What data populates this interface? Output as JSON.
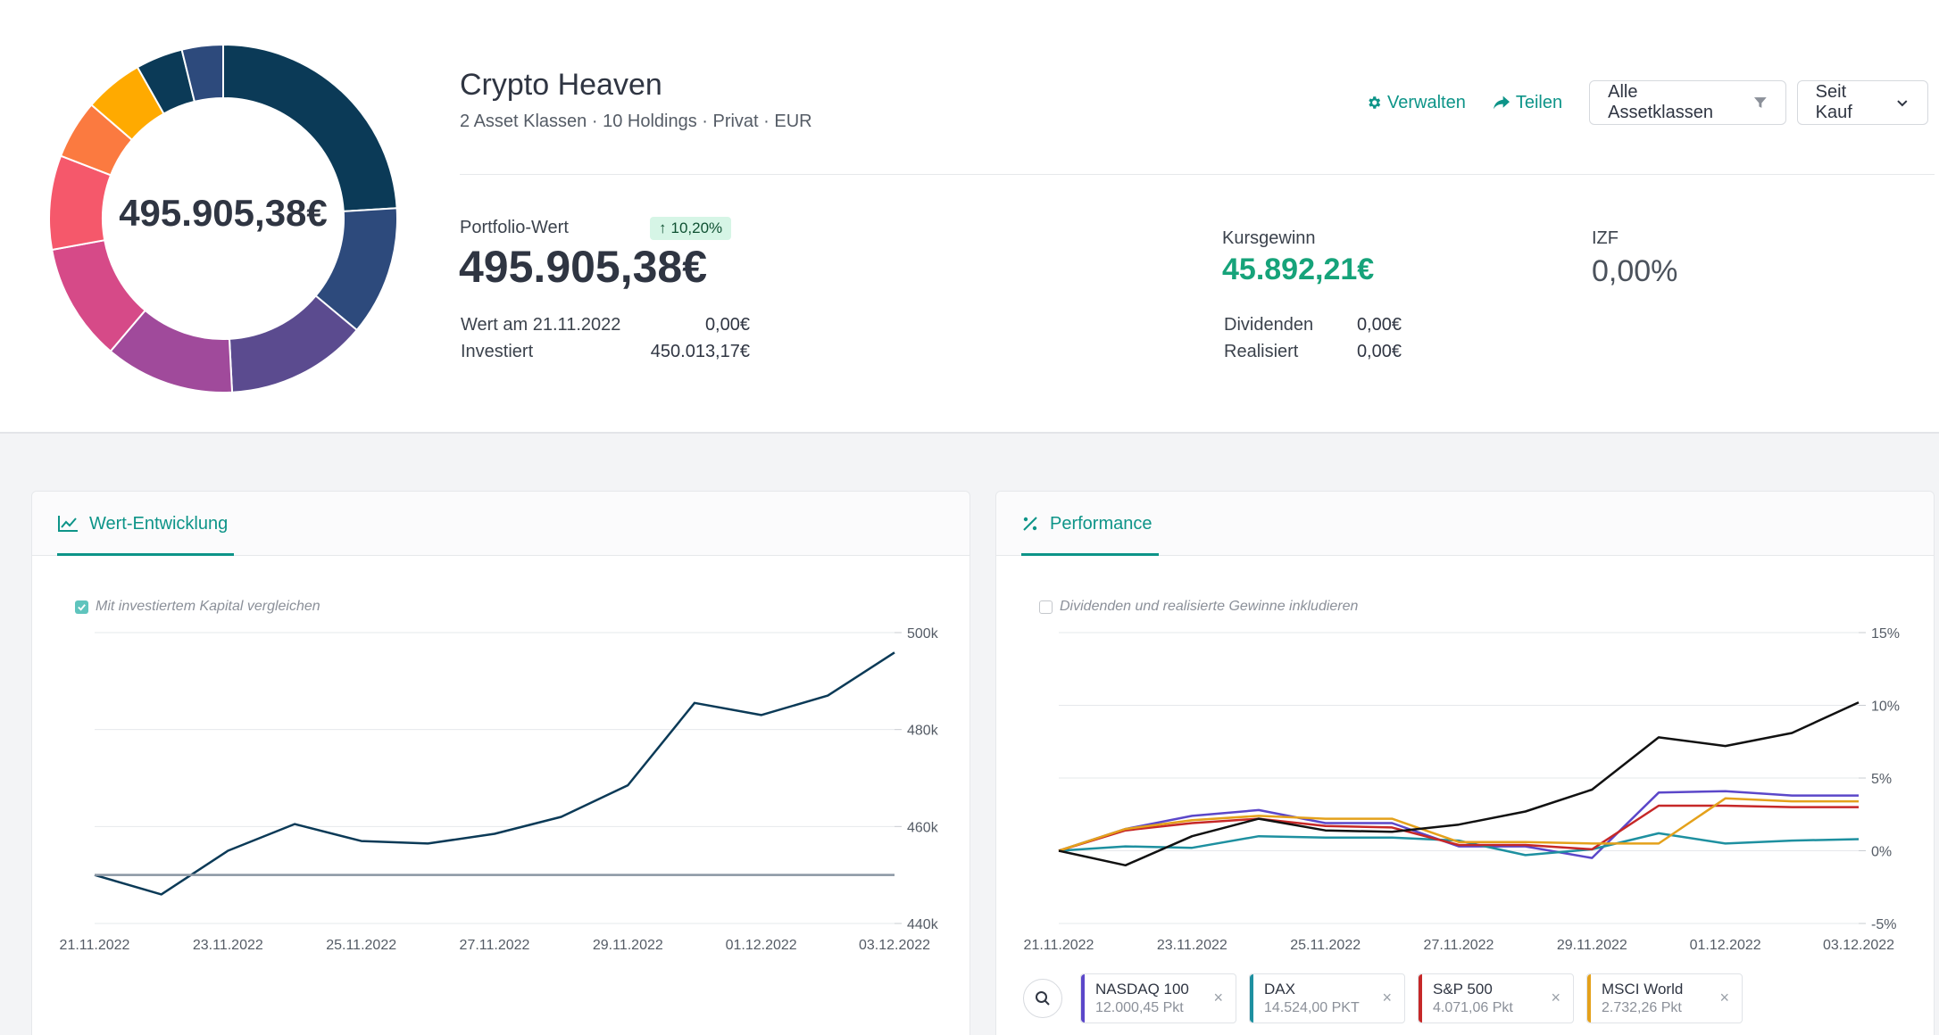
{
  "portfolio": {
    "name": "Crypto Heaven",
    "meta": "2 Asset Klassen · 10 Holdings · Privat · EUR",
    "total": "495.905,38€"
  },
  "actions": {
    "manage_label": "Verwalten",
    "share_label": "Teilen",
    "asset_filter_label": "Alle Assetklassen",
    "period_label": "Seit Kauf"
  },
  "stats": {
    "portfolio_value_label": "Portfolio-Wert",
    "portfolio_value": "495.905,38€",
    "change_badge": "10,20%",
    "value_at_label": "Wert am 21.11.2022",
    "value_at": "0,00€",
    "invested_label": "Investiert",
    "invested": "450.013,17€",
    "price_gain_label": "Kursgewinn",
    "price_gain": "45.892,21€",
    "dividends_label": "Dividenden",
    "dividends": "0,00€",
    "realized_label": "Realisiert",
    "realized": "0,00€",
    "irr_label": "IZF",
    "irr": "0,00%"
  },
  "donut": {
    "segments": [
      {
        "value": 22,
        "color": "#0b3a57"
      },
      {
        "value": 11,
        "color": "#2d4a7c"
      },
      {
        "value": 12,
        "color": "#5b4b8f"
      },
      {
        "value": 11,
        "color": "#a04a9b"
      },
      {
        "value": 10,
        "color": "#d64a88"
      },
      {
        "value": 8,
        "color": "#f5586b"
      },
      {
        "value": 5,
        "color": "#fb7a40"
      },
      {
        "value": 5,
        "color": "#ffaa00"
      },
      {
        "value": 4,
        "color": "#0b3a57"
      },
      {
        "value": 3.5,
        "color": "#2d4a7c"
      }
    ]
  },
  "value_card": {
    "tab_label": "Wert-Entwicklung",
    "checkbox_label": "Mit investiertem Kapital vergleichen"
  },
  "performance_card": {
    "tab_label": "Performance",
    "checkbox_label": "Dividenden und realisierte Gewinne inkludieren"
  },
  "chart_data": [
    {
      "type": "line",
      "x": [
        "21.11.2022",
        "22.11.2022",
        "23.11.2022",
        "24.11.2022",
        "25.11.2022",
        "26.11.2022",
        "27.11.2022",
        "28.11.2022",
        "29.11.2022",
        "30.11.2022",
        "01.12.2022",
        "02.12.2022",
        "03.12.2022"
      ],
      "x_ticks": [
        "21.11.2022",
        "23.11.2022",
        "25.11.2022",
        "27.11.2022",
        "29.11.2022",
        "01.12.2022",
        "03.12.2022"
      ],
      "y_ticks": [
        "440k",
        "460k",
        "480k",
        "500k"
      ],
      "ylim": [
        440000,
        500000
      ],
      "series": [
        {
          "color": "#0b3a57",
          "values": [
            450000,
            446000,
            455000,
            460500,
            457000,
            456500,
            458500,
            462000,
            468500,
            485500,
            483000,
            487000,
            495900
          ]
        },
        {
          "color": "#8a96a3",
          "values": [
            450013,
            450013,
            450013,
            450013,
            450013,
            450013,
            450013,
            450013,
            450013,
            450013,
            450013,
            450013,
            450013
          ]
        }
      ]
    },
    {
      "type": "line",
      "x": [
        "21.11.2022",
        "22.11.2022",
        "23.11.2022",
        "24.11.2022",
        "25.11.2022",
        "26.11.2022",
        "27.11.2022",
        "28.11.2022",
        "29.11.2022",
        "30.11.2022",
        "01.12.2022",
        "02.12.2022",
        "03.12.2022"
      ],
      "x_ticks": [
        "21.11.2022",
        "23.11.2022",
        "25.11.2022",
        "27.11.2022",
        "29.11.2022",
        "01.12.2022",
        "03.12.2022"
      ],
      "y_ticks": [
        "-5%",
        "0%",
        "5%",
        "10%",
        "15%"
      ],
      "ylim": [
        -5,
        15
      ],
      "series": [
        {
          "name": "NASDAQ 100",
          "color": "#5b47c9",
          "values": [
            0,
            1.5,
            2.4,
            2.8,
            1.9,
            1.9,
            0.3,
            0.3,
            -0.5,
            4.0,
            4.1,
            3.8,
            3.8
          ]
        },
        {
          "name": "DAX",
          "color": "#1e90a0",
          "values": [
            0,
            0.3,
            0.2,
            1.0,
            0.9,
            0.9,
            0.7,
            -0.3,
            0.1,
            1.2,
            0.5,
            0.7,
            0.8
          ]
        },
        {
          "name": "S&P 500",
          "color": "#c62828",
          "values": [
            0,
            1.4,
            1.9,
            2.2,
            1.7,
            1.6,
            0.4,
            0.4,
            0.1,
            3.1,
            3.1,
            3.0,
            3.0
          ]
        },
        {
          "name": "MSCI World",
          "color": "#e4a11b",
          "values": [
            0,
            1.5,
            2.1,
            2.4,
            2.2,
            2.2,
            0.6,
            0.6,
            0.5,
            0.5,
            3.6,
            3.4,
            3.4
          ]
        },
        {
          "color": "#111111",
          "values": [
            0,
            -1.0,
            1.0,
            2.2,
            1.4,
            1.3,
            1.8,
            2.7,
            4.2,
            7.8,
            7.2,
            8.1,
            10.2
          ]
        }
      ]
    }
  ],
  "benchmarks": [
    {
      "name": "NASDAQ 100",
      "value": "12.000,45 Pkt",
      "color": "#5b47c9"
    },
    {
      "name": "DAX",
      "value": "14.524,00 PKT",
      "color": "#1e90a0"
    },
    {
      "name": "S&P 500",
      "value": "4.071,06 Pkt",
      "color": "#c62828"
    },
    {
      "name": "MSCI World",
      "value": "2.732,26 Pkt",
      "color": "#e4a11b"
    }
  ]
}
